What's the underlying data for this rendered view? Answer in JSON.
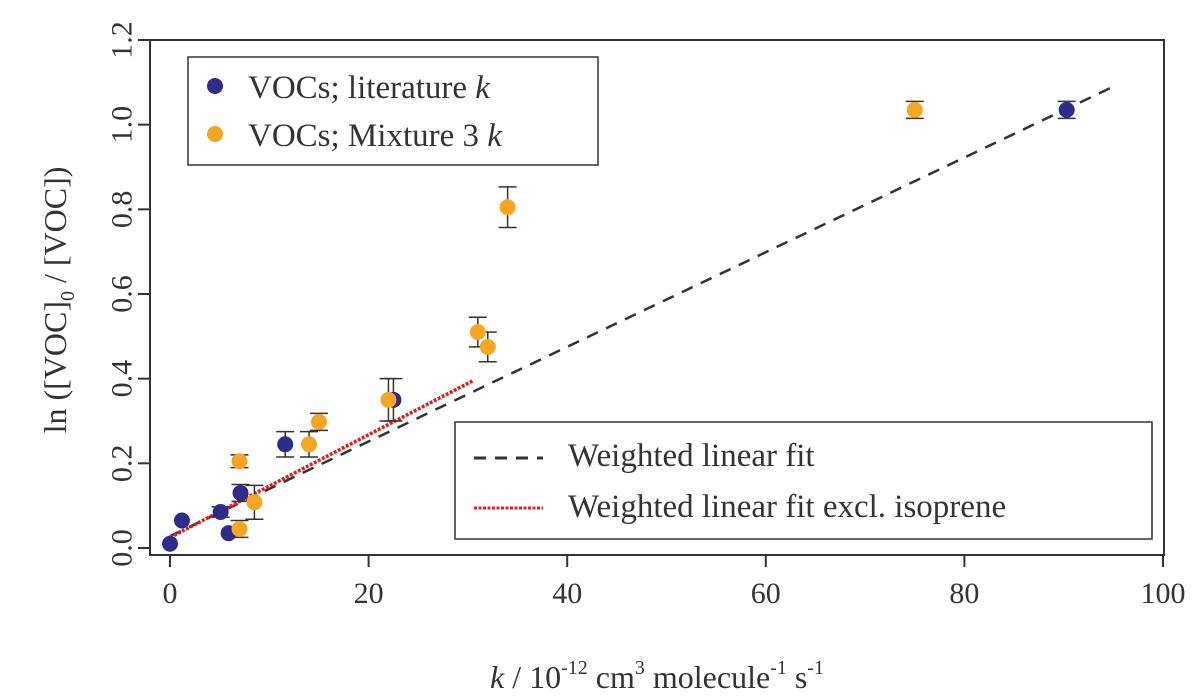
{
  "chart_data": {
    "type": "scatter",
    "x_axis": {
      "label_k": "k",
      "label_mid": " / 10",
      "label_exp1": "-12",
      "label_mid2": " cm",
      "label_exp2": "3",
      "label_mid3": " molecule",
      "label_exp3": "-1",
      "label_mid4": " s",
      "label_exp4": "-1",
      "lim": [
        0,
        100
      ],
      "ticks": [
        0,
        20,
        40,
        60,
        80,
        100
      ],
      "tick_labels": [
        "0",
        "20",
        "40",
        "60",
        "80",
        "100"
      ]
    },
    "y_axis": {
      "label_a": "ln ([VOC]",
      "label_sub": "0",
      "label_b": " / [VOC])",
      "lim": [
        0,
        1.2
      ],
      "ticks": [
        0,
        0.2,
        0.4,
        0.6,
        0.8,
        1.0,
        1.2
      ],
      "tick_labels": [
        "0.0",
        "0.2",
        "0.4",
        "0.6",
        "0.8",
        "1.0",
        "1.2"
      ]
    },
    "legend_points": {
      "placement": "top-left",
      "entries": [
        {
          "prefix": "VOCs; literature ",
          "italic": "k"
        },
        {
          "prefix": "VOCs; Mixture 3 ",
          "italic": "k"
        }
      ]
    },
    "legend_lines": {
      "placement": "bottom-right",
      "entries": [
        {
          "label": "Weighted linear fit"
        },
        {
          "label": "Weighted linear fit excl. isoprene"
        }
      ]
    },
    "series": [
      {
        "color": "#2e2c8a",
        "points": [
          {
            "x": 0.0,
            "y": 0.01,
            "err": 0
          },
          {
            "x": 1.2,
            "y": 0.065,
            "err": 0
          },
          {
            "x": 5.1,
            "y": 0.085,
            "err": 0.012
          },
          {
            "x": 5.9,
            "y": 0.035,
            "err": 0
          },
          {
            "x": 7.1,
            "y": 0.13,
            "err": 0.02
          },
          {
            "x": 11.6,
            "y": 0.245,
            "err": 0.03
          },
          {
            "x": 22.5,
            "y": 0.35,
            "err": 0.05
          },
          {
            "x": 90.3,
            "y": 1.035,
            "err": 0.02
          }
        ]
      },
      {
        "color": "#f5a623",
        "points": [
          {
            "x": 7.0,
            "y": 0.045,
            "err": 0.02
          },
          {
            "x": 7.0,
            "y": 0.205,
            "err": 0.015
          },
          {
            "x": 8.5,
            "y": 0.108,
            "err": 0.04
          },
          {
            "x": 14.0,
            "y": 0.245,
            "err": 0.03
          },
          {
            "x": 15.0,
            "y": 0.298,
            "err": 0.02
          },
          {
            "x": 22.0,
            "y": 0.35,
            "err": 0.05
          },
          {
            "x": 31.0,
            "y": 0.51,
            "err": 0.035
          },
          {
            "x": 32.0,
            "y": 0.475,
            "err": 0.035
          },
          {
            "x": 34.0,
            "y": 0.805,
            "err": 0.048
          },
          {
            "x": 75.0,
            "y": 1.035,
            "err": 0.02
          }
        ]
      }
    ],
    "fits": [
      {
        "color": "#333333",
        "style": "dashed",
        "x": [
          0,
          95
        ],
        "y": [
          0.028,
          1.09
        ]
      },
      {
        "color": "#e02020",
        "style": "dotted",
        "x": [
          0,
          30.5
        ],
        "y": [
          0.025,
          0.395
        ]
      }
    ]
  }
}
